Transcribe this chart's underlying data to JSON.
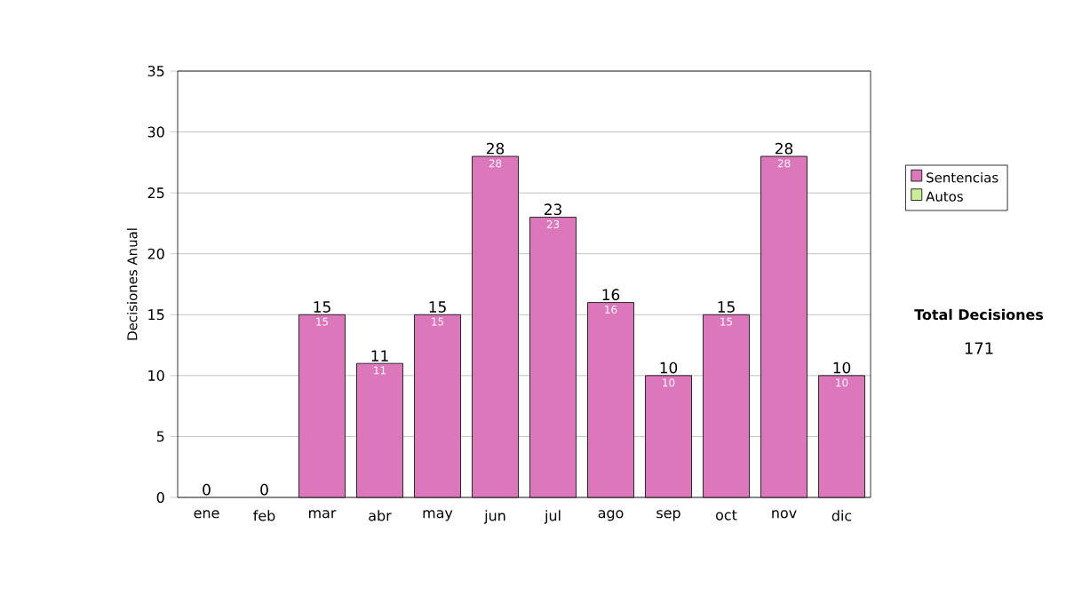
{
  "chart_data": {
    "type": "bar",
    "stacked": true,
    "categories": [
      "ene",
      "feb",
      "mar",
      "abr",
      "may",
      "jun",
      "jul",
      "ago",
      "sep",
      "oct",
      "nov",
      "dic"
    ],
    "series": [
      {
        "name": "Sentencias",
        "color": "#dd77bb",
        "values": [
          0,
          0,
          15,
          11,
          15,
          28,
          23,
          16,
          10,
          15,
          28,
          10
        ],
        "value_labels": [
          null,
          null,
          "15",
          "11",
          "15",
          "28",
          "23",
          "16",
          "10",
          "15",
          "28",
          "10"
        ]
      },
      {
        "name": "Autos",
        "color": "#ccee99",
        "values": [
          0,
          0,
          0,
          0,
          0,
          0,
          0,
          0,
          0,
          0,
          0,
          0
        ]
      }
    ],
    "totals": [
      "0",
      "0",
      "15",
      "11",
      "15",
      "28",
      "23",
      "16",
      "10",
      "15",
      "28",
      "10"
    ],
    "ylabel": "Decisiones Anual",
    "ylim": [
      0,
      35
    ],
    "yticks": [
      0,
      5,
      10,
      15,
      20,
      25,
      30,
      35
    ],
    "grid": "y",
    "legend": "right",
    "annotations": [
      "Total Decisiones",
      "171"
    ]
  }
}
